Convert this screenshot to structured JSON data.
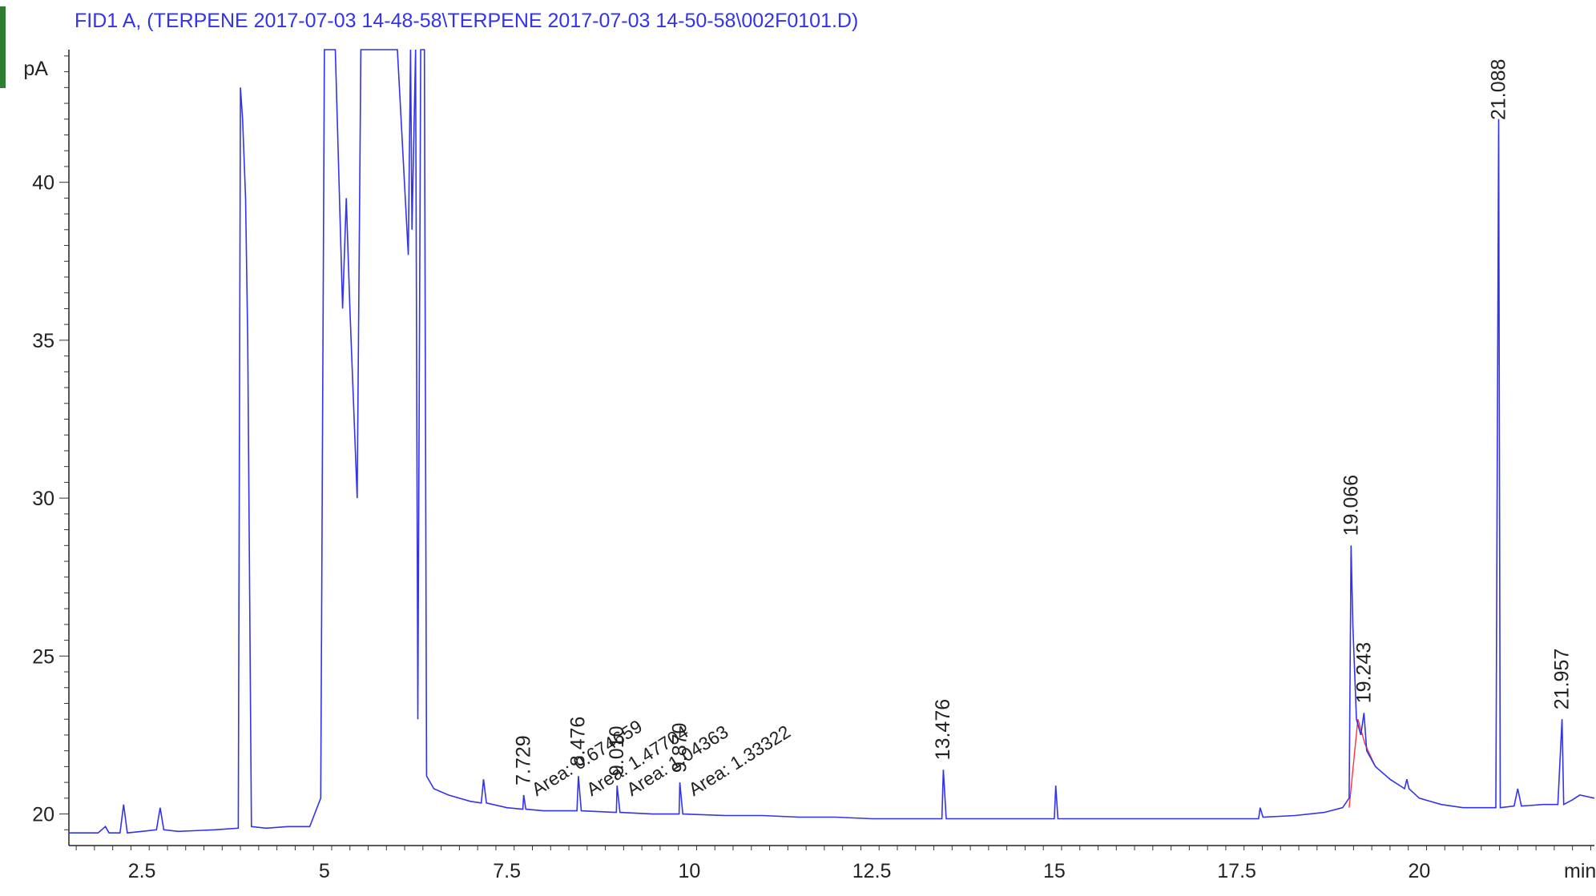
{
  "chart_data": {
    "type": "line",
    "title": "FID1 A,  (TERPENE 2017-07-03 14-48-58\\TERPENE 2017-07-03 14-50-58\\002F0101.D)",
    "ylabel": "pA",
    "xlabel": "min",
    "xlim": [
      1.5,
      22.4
    ],
    "ylim": [
      19.0,
      44.2
    ],
    "x_ticks": [
      {
        "value": 2.5,
        "label": "2.5"
      },
      {
        "value": 5,
        "label": "5"
      },
      {
        "value": 7.5,
        "label": "7.5"
      },
      {
        "value": 10,
        "label": "10"
      },
      {
        "value": 12.5,
        "label": "12.5"
      },
      {
        "value": 15,
        "label": "15"
      },
      {
        "value": 17.5,
        "label": "17.5"
      },
      {
        "value": 20,
        "label": "20"
      }
    ],
    "y_ticks": [
      {
        "value": 20,
        "label": "20"
      },
      {
        "value": 25,
        "label": "25"
      },
      {
        "value": 30,
        "label": "30"
      },
      {
        "value": 35,
        "label": "35"
      },
      {
        "value": 40,
        "label": "40"
      }
    ],
    "line_color": "#3333ee",
    "baseline_color": "#ff3333",
    "series": [
      {
        "points": [
          [
            1.5,
            19.4
          ],
          [
            1.9,
            19.4
          ],
          [
            2.0,
            19.6
          ],
          [
            2.05,
            19.4
          ],
          [
            2.2,
            19.4
          ],
          [
            2.25,
            20.3
          ],
          [
            2.3,
            19.4
          ],
          [
            2.5,
            19.45
          ],
          [
            2.7,
            19.5
          ],
          [
            2.75,
            20.2
          ],
          [
            2.8,
            19.5
          ],
          [
            3.0,
            19.45
          ],
          [
            3.5,
            19.5
          ],
          [
            3.82,
            19.55
          ],
          [
            3.85,
            43.0
          ],
          [
            3.88,
            42.0
          ],
          [
            3.92,
            39.5
          ],
          [
            3.95,
            35.0
          ],
          [
            4.0,
            19.6
          ],
          [
            4.2,
            19.55
          ],
          [
            4.5,
            19.6
          ],
          [
            4.8,
            19.6
          ],
          [
            4.95,
            20.5
          ],
          [
            5.0,
            44.2
          ],
          [
            5.15,
            44.2
          ],
          [
            5.25,
            36.0
          ],
          [
            5.3,
            39.5
          ],
          [
            5.35,
            36.0
          ],
          [
            5.45,
            30.0
          ],
          [
            5.5,
            44.2
          ],
          [
            5.6,
            44.2
          ],
          [
            6.0,
            44.2
          ],
          [
            6.15,
            37.7
          ],
          [
            6.18,
            44.2
          ],
          [
            6.2,
            38.5
          ],
          [
            6.25,
            44.2
          ],
          [
            6.28,
            23.0
          ],
          [
            6.32,
            44.2
          ],
          [
            6.37,
            44.2
          ],
          [
            6.4,
            21.2
          ],
          [
            6.5,
            20.8
          ],
          [
            6.7,
            20.6
          ],
          [
            7.0,
            20.4
          ],
          [
            7.15,
            20.35
          ],
          [
            7.18,
            21.1
          ],
          [
            7.22,
            20.35
          ],
          [
            7.5,
            20.2
          ],
          [
            7.72,
            20.15
          ],
          [
            7.73,
            20.6
          ],
          [
            7.76,
            20.15
          ],
          [
            8.0,
            20.1
          ],
          [
            8.46,
            20.1
          ],
          [
            8.48,
            21.2
          ],
          [
            8.52,
            20.1
          ],
          [
            9.0,
            20.05
          ],
          [
            9.01,
            20.9
          ],
          [
            9.05,
            20.05
          ],
          [
            9.5,
            20.0
          ],
          [
            9.86,
            20.0
          ],
          [
            9.87,
            21.0
          ],
          [
            9.91,
            20.0
          ],
          [
            10.5,
            19.95
          ],
          [
            11,
            19.95
          ],
          [
            11.5,
            19.9
          ],
          [
            12,
            19.9
          ],
          [
            12.5,
            19.85
          ],
          [
            13.0,
            19.85
          ],
          [
            13.46,
            19.85
          ],
          [
            13.48,
            21.4
          ],
          [
            13.52,
            19.85
          ],
          [
            14.0,
            19.85
          ],
          [
            14.5,
            19.85
          ],
          [
            15.0,
            19.85
          ],
          [
            15.02,
            20.9
          ],
          [
            15.05,
            19.85
          ],
          [
            15.5,
            19.85
          ],
          [
            16.0,
            19.85
          ],
          [
            16.5,
            19.85
          ],
          [
            17.0,
            19.85
          ],
          [
            17.5,
            19.85
          ],
          [
            17.8,
            19.85
          ],
          [
            17.82,
            20.2
          ],
          [
            17.86,
            19.9
          ],
          [
            18.3,
            19.95
          ],
          [
            18.7,
            20.05
          ],
          [
            18.95,
            20.2
          ],
          [
            19.04,
            20.5
          ],
          [
            19.066,
            28.5
          ],
          [
            19.09,
            26.0
          ],
          [
            19.14,
            23.0
          ],
          [
            19.2,
            22.5
          ],
          [
            19.243,
            23.2
          ],
          [
            19.28,
            22.0
          ],
          [
            19.4,
            21.5
          ],
          [
            19.6,
            21.1
          ],
          [
            19.8,
            20.8
          ],
          [
            19.83,
            21.1
          ],
          [
            19.86,
            20.8
          ],
          [
            20.0,
            20.5
          ],
          [
            20.3,
            20.3
          ],
          [
            20.6,
            20.2
          ],
          [
            20.9,
            20.2
          ],
          [
            21.05,
            20.2
          ],
          [
            21.088,
            42.0
          ],
          [
            21.11,
            20.2
          ],
          [
            21.3,
            20.25
          ],
          [
            21.35,
            20.8
          ],
          [
            21.4,
            20.25
          ],
          [
            21.7,
            20.3
          ],
          [
            21.9,
            20.3
          ],
          [
            21.957,
            23.0
          ],
          [
            21.98,
            20.3
          ],
          [
            22.1,
            20.45
          ],
          [
            22.2,
            20.6
          ],
          [
            22.4,
            20.5
          ]
        ]
      }
    ],
    "baselines": [
      [
        [
          19.04,
          20.2
        ],
        [
          19.16,
          23.0
        ],
        [
          19.26,
          22.2
        ],
        [
          19.4,
          21.5
        ]
      ]
    ],
    "peak_labels": [
      {
        "x": 7.729,
        "label": "7.729"
      },
      {
        "x": 8.476,
        "label": "8.476"
      },
      {
        "x": 9.01,
        "label": "9.010"
      },
      {
        "x": 9.87,
        "label": "9.870"
      },
      {
        "x": 13.476,
        "label": "13.476"
      },
      {
        "x": 19.066,
        "label": "19.066"
      },
      {
        "x": 19.243,
        "label": "19.243"
      },
      {
        "x": 21.088,
        "label": "21.088"
      },
      {
        "x": 21.957,
        "label": "21.957"
      }
    ],
    "area_labels": [
      {
        "x": 7.8,
        "label": "Area: 0.674659"
      },
      {
        "x": 8.55,
        "label": "Area: 1.47704"
      },
      {
        "x": 9.1,
        "label": "Area: 1.04363"
      },
      {
        "x": 9.95,
        "label": "Area: 1.33322"
      }
    ]
  }
}
